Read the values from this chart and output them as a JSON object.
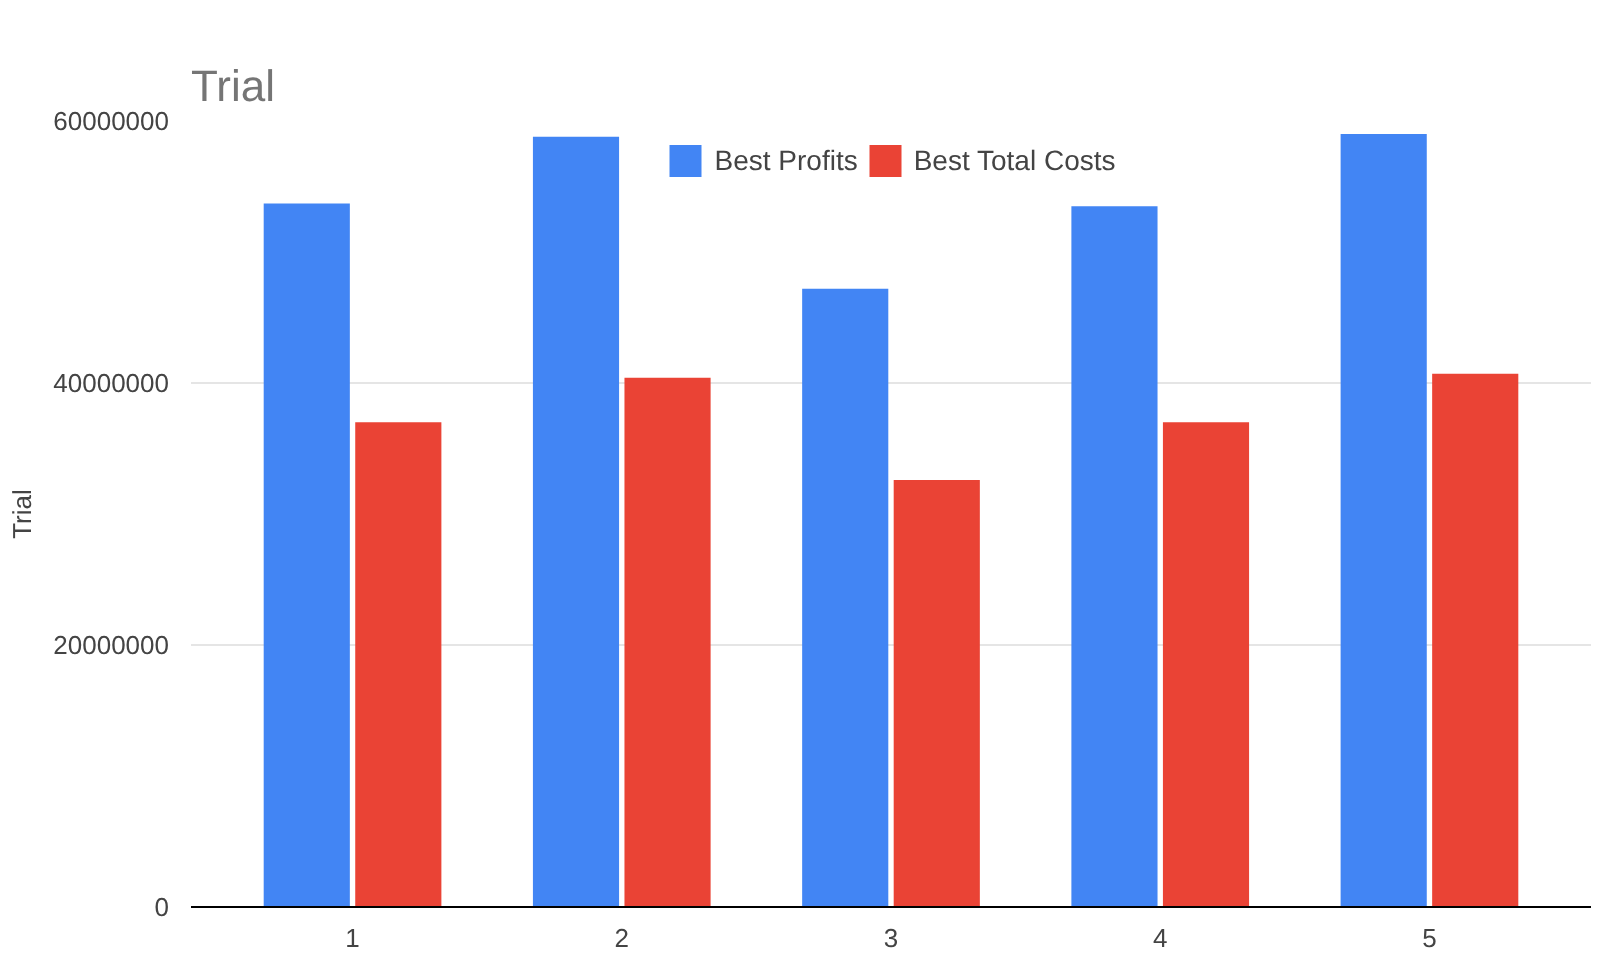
{
  "chart_data": {
    "type": "bar",
    "title": "Trial",
    "ylabel": "Trial",
    "categories": [
      "1",
      "2",
      "3",
      "4",
      "5"
    ],
    "series": [
      {
        "name": "Best Profits",
        "color": "#4285f4",
        "values": [
          53700000,
          58800000,
          47200000,
          53500000,
          59000000
        ]
      },
      {
        "name": "Best Total Costs",
        "color": "#ea4335",
        "values": [
          37000000,
          40400000,
          32600000,
          37000000,
          40700000
        ]
      }
    ],
    "ylim": [
      0,
      60000000
    ],
    "yticks": [
      0,
      20000000,
      40000000,
      60000000
    ],
    "grid": "y",
    "legend": "top"
  }
}
